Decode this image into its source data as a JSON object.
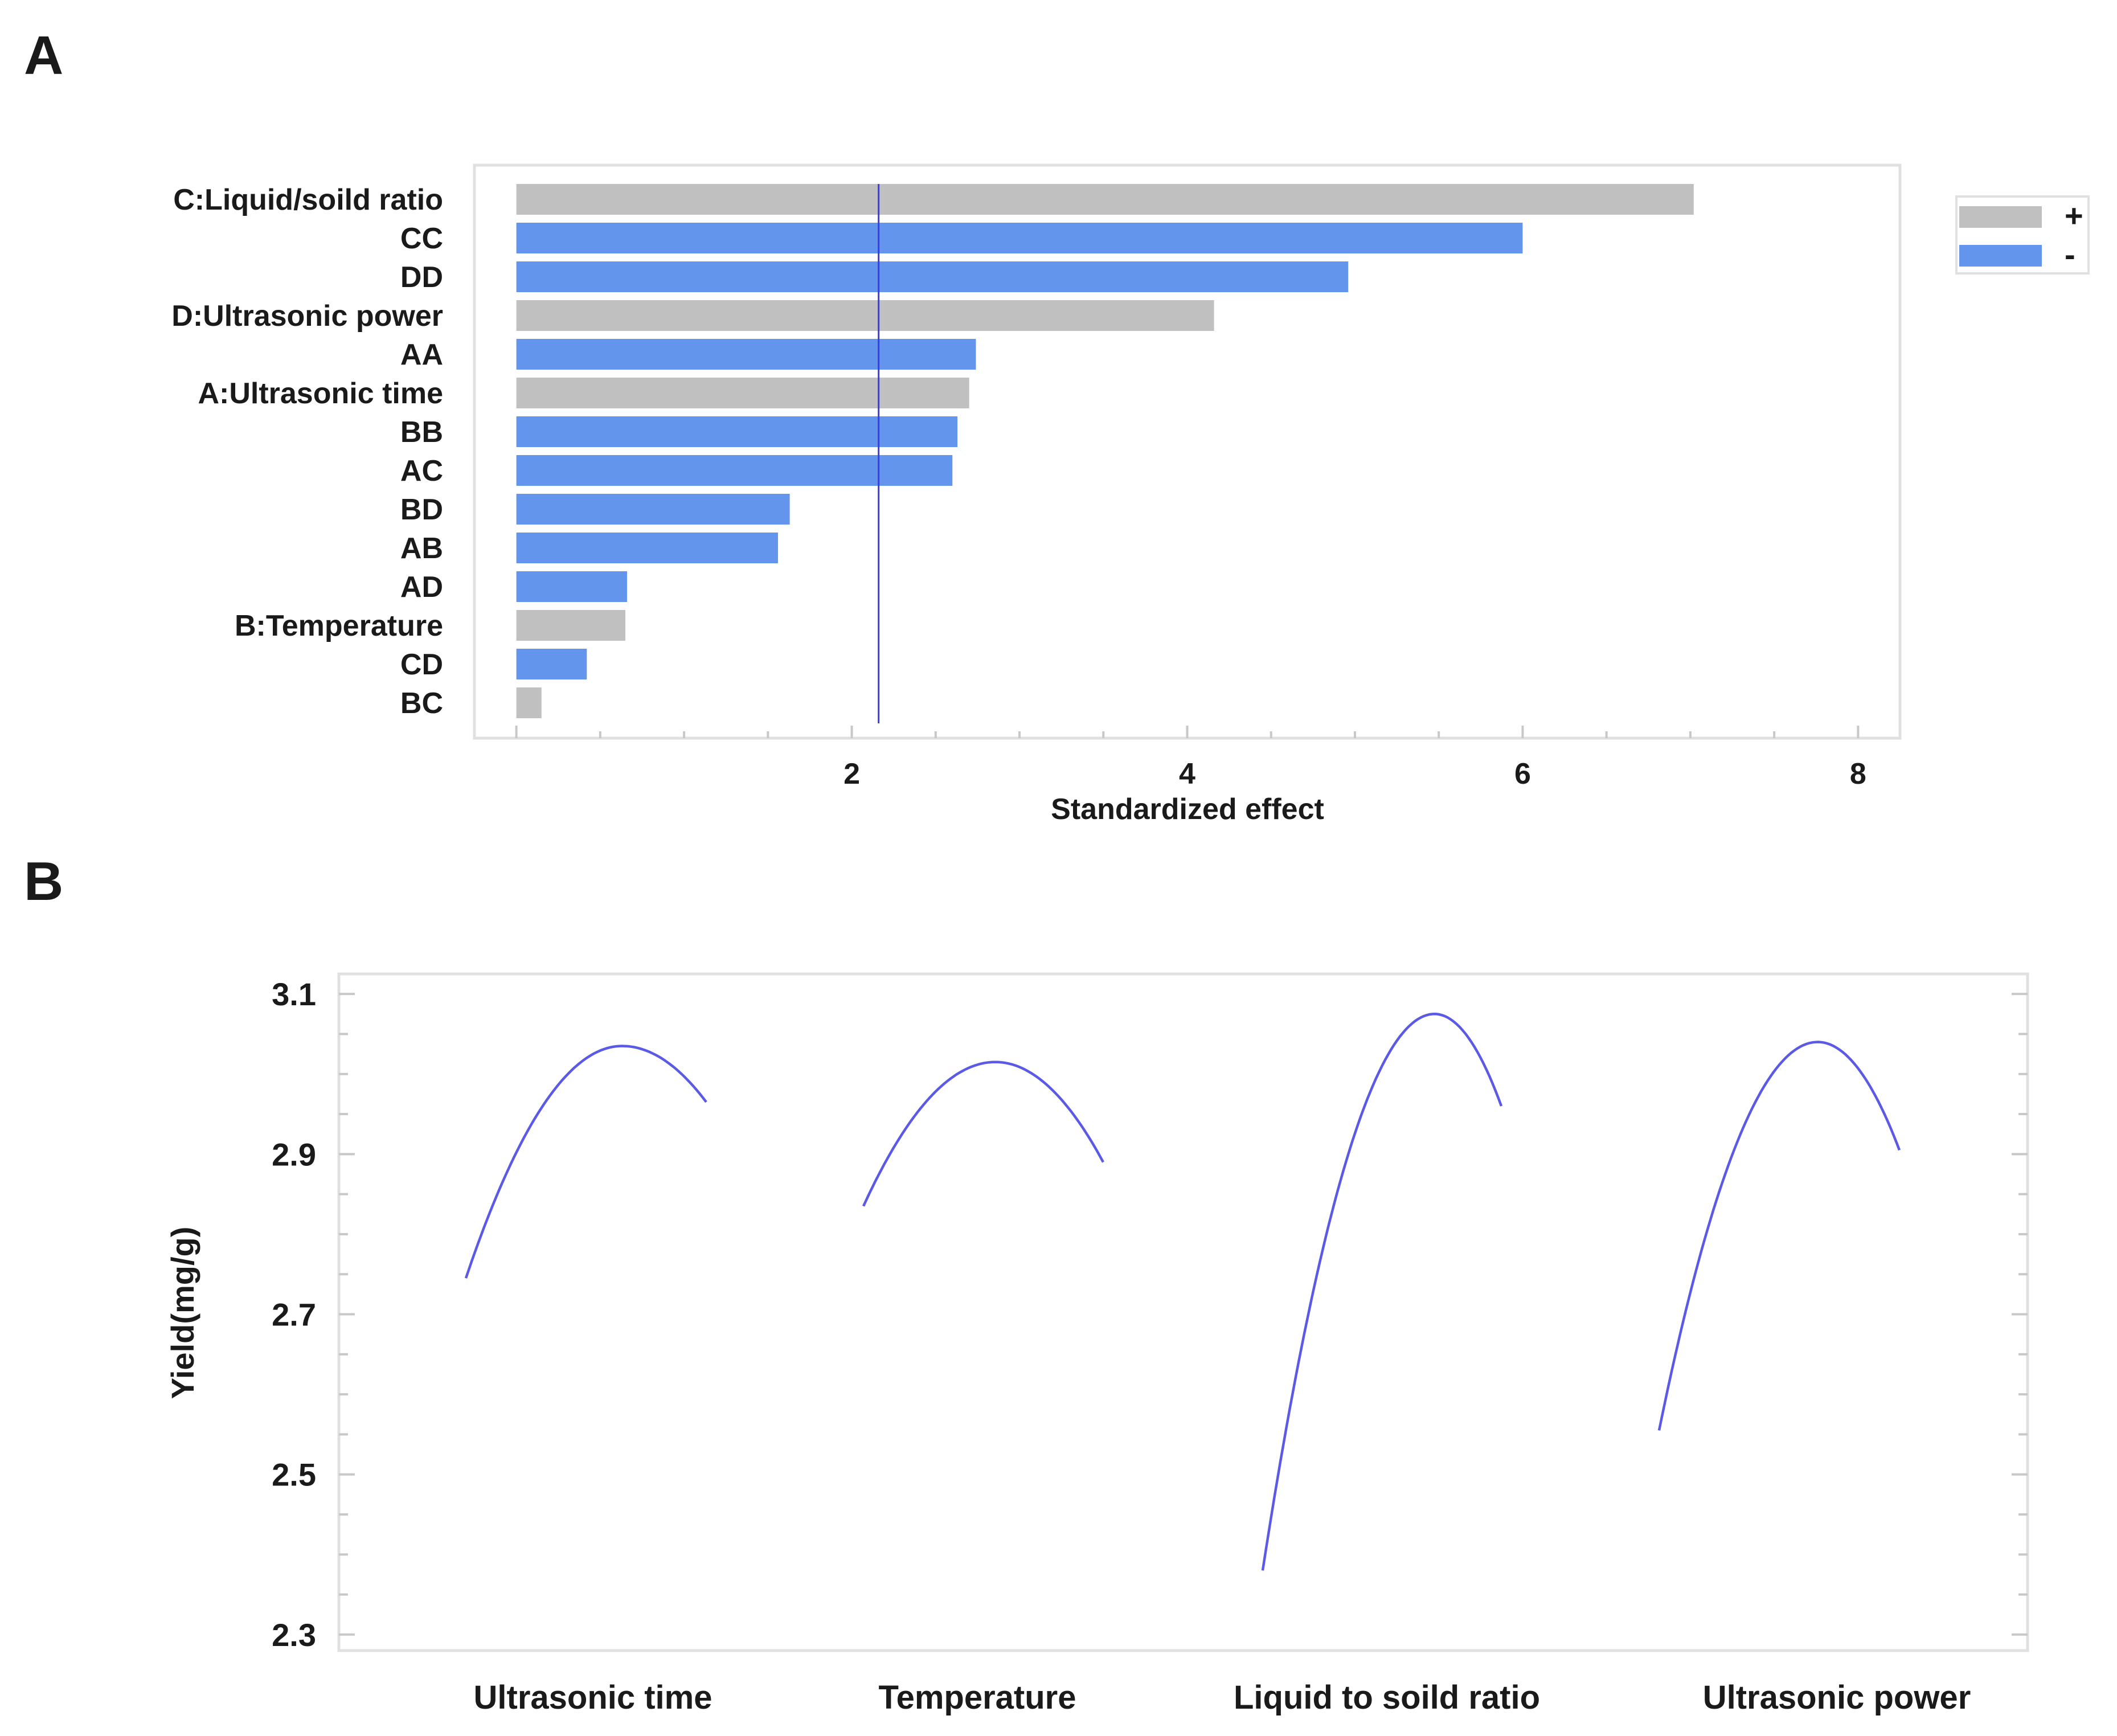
{
  "colors": {
    "positive": "#c0c0c0",
    "negative": "#6495ed",
    "curve": "#5a5ae6",
    "ref_line": "#3b3bea",
    "frame": "#e0e0e0",
    "text": "#1a1a1a"
  },
  "chart_data": [
    {
      "panel_label": "A",
      "type": "bar",
      "orientation": "horizontal",
      "categories": [
        "C:Liquid/soild ratio",
        "CC",
        "DD",
        "D:Ultrasonic power",
        "AA",
        "A:Ultrasonic time",
        "BB",
        "AC",
        "BD",
        "AB",
        "AD",
        "B:Temperature",
        "CD",
        "BC"
      ],
      "values": [
        7.02,
        6.0,
        4.96,
        4.16,
        2.74,
        2.7,
        2.63,
        2.6,
        1.63,
        1.56,
        0.66,
        0.65,
        0.42,
        0.15
      ],
      "signs": [
        "+",
        "-",
        "-",
        "+",
        "-",
        "+",
        "-",
        "-",
        "-",
        "-",
        "-",
        "+",
        "-",
        "+"
      ],
      "reference_line": 2.16,
      "xlabel": "Standardized effect",
      "xlim": [
        -0.25,
        8.25
      ],
      "xticks": [
        2,
        4,
        6,
        8
      ],
      "legend": {
        "position": "top-right",
        "entries": [
          {
            "label": "+",
            "sign": "+"
          },
          {
            "label": "-",
            "sign": "-"
          }
        ]
      }
    },
    {
      "panel_label": "B",
      "type": "line",
      "ylabel": "Yield(mg/g)",
      "ylim": [
        2.28,
        3.125
      ],
      "yticks": [
        2.3,
        2.5,
        2.7,
        2.9,
        3.1
      ],
      "panels": [
        "Ultrasonic time",
        "Temperature",
        "Liquid to soild ratio",
        "Ultrasonic power"
      ],
      "series": [
        {
          "label": "Ultrasonic time",
          "low": 2.745,
          "peak": 3.035,
          "peak_at": 0.65,
          "high": 2.965
        },
        {
          "label": "Temperature",
          "low": 2.835,
          "peak": 3.015,
          "peak_at": 0.55,
          "high": 2.89
        },
        {
          "label": "Liquid to soild ratio",
          "low": 2.38,
          "peak": 3.075,
          "peak_at": 0.72,
          "high": 2.96
        },
        {
          "label": "Ultrasonic power",
          "low": 2.555,
          "peak": 3.04,
          "peak_at": 0.66,
          "high": 2.905
        }
      ]
    }
  ]
}
